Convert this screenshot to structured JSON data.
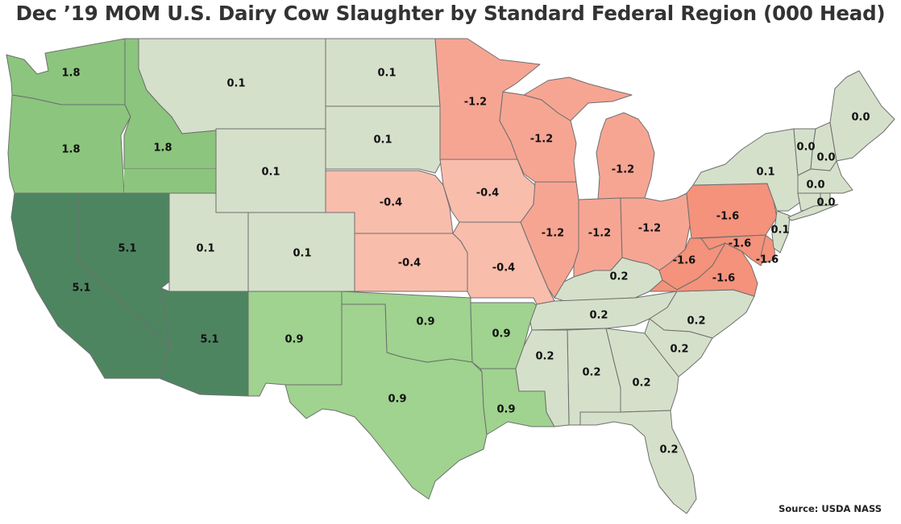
{
  "title": "Dec ’19 MOM U.S. Dairy Cow Slaughter by Standard Federal Region (000 Head)",
  "source": "Source: USDA NASS",
  "colors": {
    "pos_strong": "#4e8561",
    "pos_mid": "#8cc57e",
    "pos_light": "#9fd38f",
    "neutral": "#d5e0ca",
    "neg_light": "#f9bdac",
    "neg_mid": "#f6a593",
    "neg_strong": "#f4927b",
    "border": "#6e6e6e"
  },
  "regions": [
    {
      "name": "Region 1",
      "states": [
        "ME",
        "NH",
        "VT",
        "MA",
        "RI",
        "CT"
      ],
      "value": "0.0"
    },
    {
      "name": "Region 2",
      "states": [
        "NY",
        "NJ"
      ],
      "value": "0.1"
    },
    {
      "name": "Region 3",
      "states": [
        "PA",
        "WV",
        "VA",
        "MD",
        "DE"
      ],
      "value": "-1.6"
    },
    {
      "name": "Region 4",
      "states": [
        "KY",
        "TN",
        "NC",
        "SC",
        "GA",
        "AL",
        "MS",
        "FL"
      ],
      "value": "0.2"
    },
    {
      "name": "Region 5",
      "states": [
        "MN",
        "WI",
        "MI",
        "IL",
        "IN",
        "OH"
      ],
      "value": "-1.2"
    },
    {
      "name": "Region 6",
      "states": [
        "NM",
        "TX",
        "OK",
        "AR",
        "LA"
      ],
      "value": "0.9"
    },
    {
      "name": "Region 7",
      "states": [
        "NE",
        "IA",
        "KS",
        "MO"
      ],
      "value": "-0.4"
    },
    {
      "name": "Region 8",
      "states": [
        "MT",
        "ND",
        "SD",
        "WY",
        "UT",
        "CO"
      ],
      "value": "0.1"
    },
    {
      "name": "Region 9",
      "states": [
        "CA",
        "NV",
        "AZ"
      ],
      "value": "5.1"
    },
    {
      "name": "Region 10",
      "states": [
        "WA",
        "OR",
        "ID"
      ],
      "value": "1.8"
    }
  ],
  "labels": {
    "WA": "1.8",
    "OR": "1.8",
    "ID": "1.8",
    "MT": "0.1",
    "ND": "0.1",
    "SD": "0.1",
    "WY": "0.1",
    "UT": "0.1",
    "CO": "0.1",
    "NV": "5.1",
    "CA": "5.1",
    "AZ": "5.1",
    "NE": "-0.4",
    "IA": "-0.4",
    "KS": "-0.4",
    "MO": "-0.4",
    "MN": "-1.2",
    "WI": "-1.2",
    "MI": "-1.2",
    "IL": "-1.2",
    "IN": "-1.2",
    "OH": "-1.2",
    "NM": "0.9",
    "TX": "0.9",
    "OK": "0.9",
    "AR": "0.9",
    "LA": "0.9",
    "KY": "0.2",
    "TN": "0.2",
    "NC": "0.2",
    "SC": "0.2",
    "GA": "0.2",
    "AL": "0.2",
    "MS": "0.2",
    "FL": "0.2",
    "PA": "-1.6",
    "WV": "-1.6",
    "VA": "-1.6",
    "MD": "-1.6",
    "DE": "-1.6",
    "NY": "0.1",
    "NJ": "0.1",
    "ME": "0.0",
    "VT": "0.0",
    "NH": "0.0",
    "MA": "0.0",
    "CT": "0.0"
  }
}
